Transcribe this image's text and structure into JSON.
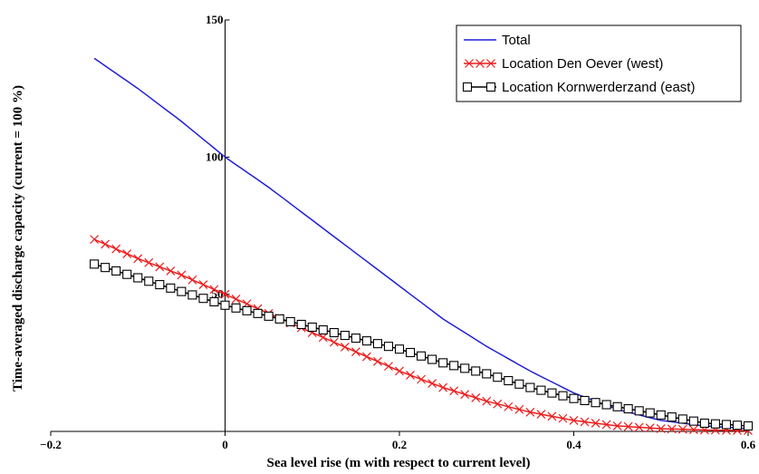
{
  "chart_data": {
    "type": "line",
    "xlabel": "Sea level rise (m with respect to current level)",
    "ylabel": "Time-averaged discharge capacity (current = 100 %)",
    "xlim": [
      -0.2,
      0.6
    ],
    "ylim": [
      0,
      150
    ],
    "x_ticks": [
      "-0.2",
      "0",
      "0.2",
      "0.4",
      "0.6"
    ],
    "y_ticks": [
      "50",
      "100",
      "150"
    ],
    "legend_position": "top-right",
    "series": [
      {
        "name": "Total",
        "color": "#1f1fd6",
        "marker": "none",
        "x": [
          -0.15,
          -0.1,
          -0.05,
          0.0,
          0.05,
          0.1,
          0.15,
          0.2,
          0.25,
          0.3,
          0.35,
          0.4,
          0.45,
          0.5,
          0.55,
          0.6
        ],
        "y": [
          136,
          125,
          113,
          100,
          89,
          77,
          65,
          53,
          41,
          31,
          22,
          14,
          8,
          4,
          2,
          1
        ]
      },
      {
        "name": "Location Den Oever (west)",
        "color": "#ee1c1c",
        "marker": "x",
        "x": [
          -0.15,
          -0.1,
          -0.05,
          0.0,
          0.05,
          0.1,
          0.15,
          0.2,
          0.25,
          0.3,
          0.35,
          0.4,
          0.45,
          0.5,
          0.55,
          0.6
        ],
        "y": [
          70,
          63,
          57,
          50,
          43,
          36,
          29,
          22,
          16,
          11,
          7,
          4,
          2,
          1,
          0.5,
          0.3
        ]
      },
      {
        "name": "Location Kornwerderzand (east)",
        "color": "#000000",
        "marker": "square",
        "x": [
          -0.15,
          -0.1,
          -0.05,
          0.0,
          0.05,
          0.1,
          0.15,
          0.2,
          0.25,
          0.3,
          0.35,
          0.4,
          0.45,
          0.5,
          0.55,
          0.6
        ],
        "y": [
          61,
          56,
          51,
          46,
          42,
          38,
          34,
          30,
          25,
          21,
          16,
          12,
          9,
          6,
          3,
          2
        ]
      }
    ]
  }
}
